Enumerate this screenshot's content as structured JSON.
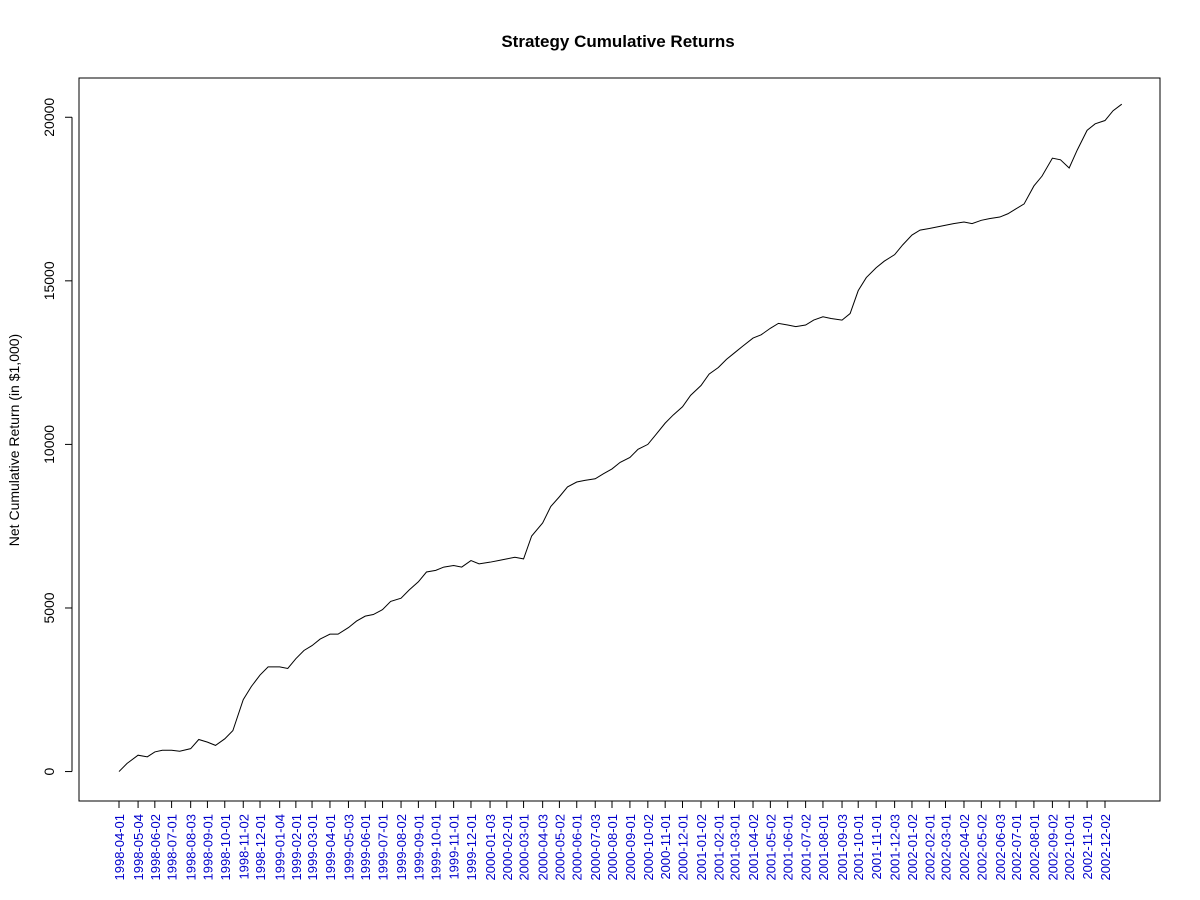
{
  "chart_data": {
    "type": "line",
    "title": "Strategy Cumulative Returns",
    "xlabel": "",
    "ylabel": "Net Cumulative Return (in $1,000)",
    "ylim": [
      -900,
      21200
    ],
    "yticks": [
      0,
      5000,
      10000,
      15000,
      20000
    ],
    "grid": false,
    "legend": "none",
    "colors": {
      "line": "#000000",
      "xtick_label": "#0000cc",
      "axis": "#000000"
    },
    "xticks": [
      "1998-04-01",
      "1998-05-04",
      "1998-06-02",
      "1998-07-01",
      "1998-08-03",
      "1998-09-01",
      "1998-10-01",
      "1998-11-02",
      "1998-12-01",
      "1999-01-04",
      "1999-02-01",
      "1999-03-01",
      "1999-04-01",
      "1999-05-03",
      "1999-06-01",
      "1999-07-01",
      "1999-08-02",
      "1999-09-01",
      "1999-10-01",
      "1999-11-01",
      "1999-12-01",
      "2000-01-03",
      "2000-02-01",
      "2000-03-01",
      "2000-04-03",
      "2000-05-02",
      "2000-06-01",
      "2000-07-03",
      "2000-08-01",
      "2000-09-01",
      "2000-10-02",
      "2000-11-01",
      "2000-12-01",
      "2001-01-02",
      "2001-02-01",
      "2001-03-01",
      "2001-04-02",
      "2001-05-02",
      "2001-06-01",
      "2001-07-02",
      "2001-08-01",
      "2001-09-03",
      "2001-10-01",
      "2001-11-01",
      "2001-12-03",
      "2002-01-02",
      "2002-02-01",
      "2002-03-01",
      "2002-04-02",
      "2002-05-02",
      "2002-06-03",
      "2002-07-01",
      "2002-08-01",
      "2002-09-02",
      "2002-10-01",
      "2002-11-01",
      "2002-12-02"
    ],
    "series": [
      {
        "x": [
          "1998-04-01",
          "1998-04-15",
          "1998-05-04",
          "1998-05-20",
          "1998-06-02",
          "1998-06-15",
          "1998-07-01",
          "1998-07-15",
          "1998-08-03",
          "1998-08-17",
          "1998-09-01",
          "1998-09-15",
          "1998-10-01",
          "1998-10-15",
          "1998-11-02",
          "1998-11-16",
          "1998-12-01",
          "1998-12-15",
          "1999-01-04",
          "1999-01-18",
          "1999-02-01",
          "1999-02-15",
          "1999-03-01",
          "1999-03-15",
          "1999-04-01",
          "1999-04-15",
          "1999-05-03",
          "1999-05-17",
          "1999-06-01",
          "1999-06-15",
          "1999-07-01",
          "1999-07-15",
          "1999-08-02",
          "1999-08-16",
          "1999-09-01",
          "1999-09-15",
          "1999-10-01",
          "1999-10-15",
          "1999-11-01",
          "1999-11-15",
          "1999-12-01",
          "1999-12-15",
          "2000-01-03",
          "2000-01-18",
          "2000-02-01",
          "2000-02-15",
          "2000-03-01",
          "2000-03-15",
          "2000-04-03",
          "2000-04-17",
          "2000-05-02",
          "2000-05-16",
          "2000-06-01",
          "2000-06-15",
          "2000-07-03",
          "2000-07-17",
          "2000-08-01",
          "2000-08-15",
          "2000-09-01",
          "2000-09-15",
          "2000-10-02",
          "2000-10-16",
          "2000-11-01",
          "2000-11-15",
          "2000-12-01",
          "2000-12-15",
          "2001-01-02",
          "2001-01-16",
          "2001-02-01",
          "2001-02-15",
          "2001-03-01",
          "2001-03-15",
          "2001-04-02",
          "2001-04-16",
          "2001-05-02",
          "2001-05-16",
          "2001-06-01",
          "2001-06-15",
          "2001-07-02",
          "2001-07-16",
          "2001-08-01",
          "2001-08-15",
          "2001-09-03",
          "2001-09-17",
          "2001-10-01",
          "2001-10-15",
          "2001-11-01",
          "2001-11-15",
          "2001-12-03",
          "2001-12-17",
          "2002-01-02",
          "2002-01-16",
          "2002-02-01",
          "2002-02-15",
          "2002-03-01",
          "2002-03-15",
          "2002-04-02",
          "2002-04-16",
          "2002-05-02",
          "2002-05-16",
          "2002-06-03",
          "2002-06-17",
          "2002-07-01",
          "2002-07-15",
          "2002-08-01",
          "2002-08-15",
          "2002-09-02",
          "2002-09-16",
          "2002-10-01",
          "2002-10-15",
          "2002-11-01",
          "2002-11-15",
          "2002-12-02",
          "2002-12-16",
          "2002-12-31"
        ],
        "values": [
          0,
          250,
          500,
          450,
          600,
          650,
          650,
          620,
          700,
          980,
          900,
          800,
          1000,
          1250,
          2200,
          2600,
          2950,
          3200,
          3200,
          3150,
          3450,
          3700,
          3850,
          4050,
          4200,
          4200,
          4400,
          4600,
          4750,
          4800,
          4950,
          5200,
          5300,
          5550,
          5800,
          6100,
          6150,
          6250,
          6300,
          6250,
          6450,
          6350,
          6400,
          6450,
          6500,
          6550,
          6500,
          7200,
          7600,
          8100,
          8400,
          8700,
          8850,
          8900,
          8950,
          9100,
          9250,
          9450,
          9600,
          9850,
          10000,
          10300,
          10650,
          10900,
          11150,
          11500,
          11800,
          12150,
          12350,
          12600,
          12800,
          13000,
          13250,
          13350,
          13550,
          13700,
          13650,
          13600,
          13650,
          13800,
          13900,
          13850,
          13800,
          14000,
          14700,
          15100,
          15400,
          15600,
          15800,
          16100,
          16400,
          16550,
          16600,
          16650,
          16700,
          16750,
          16800,
          16750,
          16850,
          16900,
          16950,
          17050,
          17200,
          17350,
          17900,
          18200,
          18750,
          18700,
          18450,
          19000,
          19600,
          19800,
          19900,
          20200,
          20400
        ]
      }
    ]
  }
}
